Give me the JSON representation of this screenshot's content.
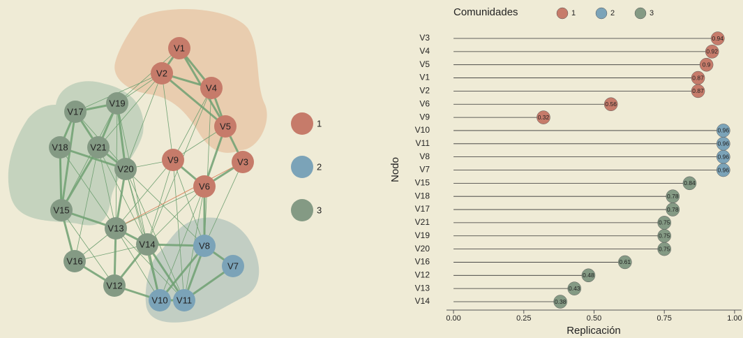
{
  "network": {
    "communities": [
      {
        "label": "1",
        "color": "#c67b6a",
        "nodes": [
          "V1",
          "V2",
          "V4",
          "V5",
          "V3",
          "V9",
          "V6"
        ]
      },
      {
        "label": "2",
        "color": "#7ba3b8",
        "nodes": [
          "V8",
          "V7",
          "V10",
          "V11"
        ]
      },
      {
        "label": "3",
        "color": "#849a84",
        "nodes": [
          "V17",
          "V19",
          "V18",
          "V21",
          "V20",
          "V15",
          "V13",
          "V14",
          "V16",
          "V12"
        ]
      }
    ]
  },
  "chart_data": {
    "type": "lollipop",
    "legend_title": "Comunidades",
    "xlabel": "Replicación",
    "ylabel": "Nodo",
    "categories": [
      "V3",
      "V4",
      "V5",
      "V1",
      "V2",
      "V6",
      "V9",
      "V10",
      "V11",
      "V8",
      "V7",
      "V15",
      "V18",
      "V17",
      "V21",
      "V19",
      "V20",
      "V16",
      "V12",
      "V13",
      "V14"
    ],
    "series": [
      {
        "name": "1",
        "color": "#c67b6a",
        "values": [
          0.94,
          0.92,
          0.9,
          0.87,
          0.87,
          0.56,
          0.32,
          null,
          null,
          null,
          null,
          null,
          null,
          null,
          null,
          null,
          null,
          null,
          null,
          null,
          null
        ]
      },
      {
        "name": "2",
        "color": "#7ba3b8",
        "values": [
          null,
          null,
          null,
          null,
          null,
          null,
          null,
          0.96,
          0.96,
          0.96,
          0.96,
          null,
          null,
          null,
          null,
          null,
          null,
          null,
          null,
          null,
          null
        ]
      },
      {
        "name": "3",
        "color": "#849a84",
        "values": [
          null,
          null,
          null,
          null,
          null,
          null,
          null,
          null,
          null,
          null,
          null,
          0.84,
          0.78,
          0.78,
          0.75,
          0.75,
          0.75,
          0.61,
          0.48,
          0.43,
          0.38
        ]
      }
    ],
    "xlim": [
      -0.025,
      1.025
    ],
    "xticks": [
      {
        "value": 0,
        "label": "0.00"
      },
      {
        "value": 0.25,
        "label": "0.25"
      },
      {
        "value": 0.5,
        "label": "0.50"
      },
      {
        "value": 0.75,
        "label": "0.75"
      },
      {
        "value": 1,
        "label": "1.00"
      }
    ]
  }
}
